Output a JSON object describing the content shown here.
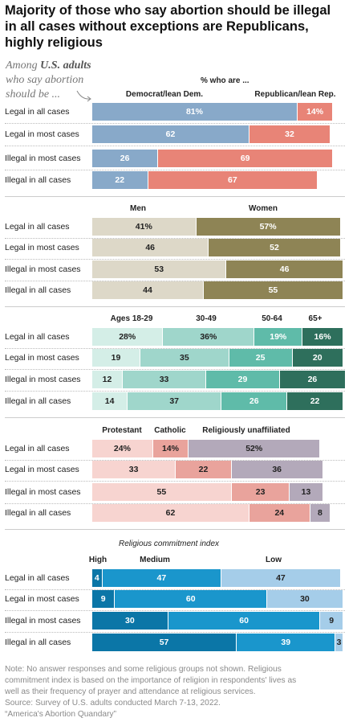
{
  "title_lines": [
    "Majority of those who say abortion should be illegal",
    "in all cases without exceptions are Republicans,",
    "highly religious"
  ],
  "intro": {
    "prefix": "Among ",
    "bold": "U.S. adults",
    "rest": " who say abortion should be ..."
  },
  "pct_header": "% who are ...",
  "colors": {
    "dem": "#88a9c9",
    "rep": "#e88477",
    "men": "#ddd8c8",
    "women": "#8e8455",
    "age1": "#d4eee7",
    "age2": "#9fd6cb",
    "age3": "#5fbba9",
    "age4": "#2e6f5c",
    "prot": "#f7d4d0",
    "cath": "#e9a39c",
    "unaff": "#b3a9ba",
    "other": "#bcbcbc",
    "high": "#0b76a7",
    "medium": "#1a96cc",
    "low": "#a5cde9"
  },
  "chart_data": [
    {
      "type": "bar",
      "stacked": true,
      "orientation": "horizontal",
      "categories": [
        "Legal in all cases",
        "Legal in most cases",
        "Illegal in most cases",
        "Illegal in all cases"
      ],
      "series": [
        {
          "name": "Democrat/lean Dem.",
          "values": [
            81,
            62,
            26,
            22
          ],
          "labels": [
            "81%",
            "62",
            "26",
            "22"
          ]
        },
        {
          "name": "Republican/lean Rep.",
          "values": [
            14,
            32,
            69,
            67
          ],
          "labels": [
            "14%",
            "32",
            "69",
            "67"
          ]
        }
      ]
    },
    {
      "type": "bar",
      "stacked": true,
      "orientation": "horizontal",
      "categories": [
        "Legal in all cases",
        "Legal in most cases",
        "Illegal in most cases",
        "Illegal in all cases"
      ],
      "series": [
        {
          "name": "Men",
          "values": [
            41,
            46,
            53,
            44
          ],
          "labels": [
            "41%",
            "46",
            "53",
            "44"
          ]
        },
        {
          "name": "Women",
          "values": [
            57,
            52,
            46,
            55
          ],
          "labels": [
            "57%",
            "52",
            "46",
            "55"
          ]
        }
      ]
    },
    {
      "type": "bar",
      "stacked": true,
      "orientation": "horizontal",
      "categories": [
        "Legal in all cases",
        "Legal in most cases",
        "Illegal in most cases",
        "Illegal in all cases"
      ],
      "series": [
        {
          "name": "Ages 18-29",
          "values": [
            28,
            19,
            12,
            14
          ],
          "labels": [
            "28%",
            "19",
            "12",
            "14"
          ]
        },
        {
          "name": "30-49",
          "values": [
            36,
            35,
            33,
            37
          ],
          "labels": [
            "36%",
            "35",
            "33",
            "37"
          ]
        },
        {
          "name": "50-64",
          "values": [
            19,
            25,
            29,
            26
          ],
          "labels": [
            "19%",
            "25",
            "29",
            "26"
          ]
        },
        {
          "name": "65+",
          "values": [
            16,
            20,
            26,
            22
          ],
          "labels": [
            "16%",
            "20",
            "26",
            "22"
          ]
        }
      ]
    },
    {
      "type": "bar",
      "stacked": true,
      "orientation": "horizontal",
      "categories": [
        "Legal in all cases",
        "Legal in most cases",
        "Illegal in most cases",
        "Illegal in all cases"
      ],
      "series": [
        {
          "name": "Protestant",
          "values": [
            24,
            33,
            55,
            62
          ],
          "labels": [
            "24%",
            "33",
            "55",
            "62"
          ]
        },
        {
          "name": "Catholic",
          "values": [
            14,
            22,
            23,
            24
          ],
          "labels": [
            "14%",
            "22",
            "23",
            "24"
          ]
        },
        {
          "name": "Religiously unaffiliated",
          "values": [
            52,
            36,
            13,
            8
          ],
          "labels": [
            "52%",
            "36",
            "13",
            "8"
          ]
        }
      ]
    },
    {
      "type": "bar",
      "stacked": true,
      "orientation": "horizontal",
      "title": "Religious commitment index",
      "categories": [
        "Legal in all cases",
        "Legal in most cases",
        "Illegal in most cases",
        "Illegal in all cases"
      ],
      "series": [
        {
          "name": "High",
          "values": [
            4,
            9,
            30,
            57
          ],
          "labels": [
            "4",
            "9",
            "30",
            "57"
          ]
        },
        {
          "name": "Medium",
          "values": [
            47,
            60,
            60,
            39
          ],
          "labels": [
            "47",
            "60",
            "60",
            "39"
          ]
        },
        {
          "name": "Low",
          "values": [
            47,
            30,
            9,
            3
          ],
          "labels": [
            "47",
            "30",
            "9",
            "3"
          ]
        }
      ]
    }
  ],
  "note_lines": [
    "Note: No answer responses and some religious groups not shown. Religious",
    "commitment index is based on the importance of religion in respondents' lives as",
    "well as their frequency of prayer and attendance at religious services.",
    "Source: Survey of U.S. adults conducted March 7-13, 2022.",
    "“America's Abortion Quandary”"
  ]
}
